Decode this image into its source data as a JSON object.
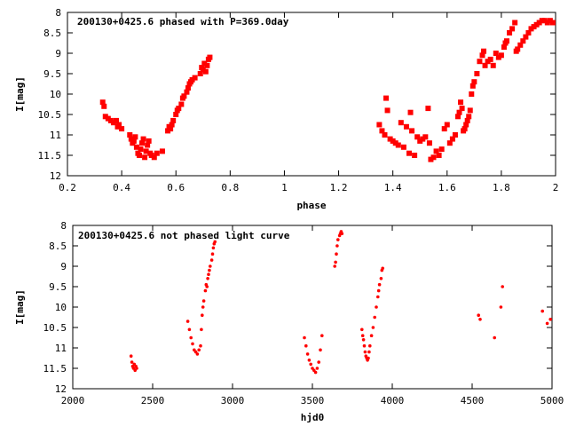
{
  "chart_data": [
    {
      "type": "scatter",
      "title": "200130+0425.6 phased with P=369.0day",
      "xlabel": "phase",
      "ylabel": "I[mag]",
      "xlim": [
        0.2,
        2.0
      ],
      "ylim": [
        12,
        8
      ],
      "y_inverted": true,
      "x_ticks": [
        0.2,
        0.4,
        0.6,
        0.8,
        1.0,
        1.2,
        1.4,
        1.6,
        1.8,
        2.0
      ],
      "x_tick_labels": [
        "0.2",
        "0.4",
        "0.6",
        "0.8",
        "1",
        "1.2",
        "1.4",
        "1.6",
        "1.8",
        "2"
      ],
      "y_ticks": [
        8,
        8.5,
        9,
        9.5,
        10,
        10.5,
        11,
        11.5,
        12
      ],
      "y_tick_labels": [
        "8",
        "8.5",
        "9",
        "9.5",
        "10",
        "10.5",
        "11",
        "11.5",
        "12"
      ],
      "marker_color": "#ff0000",
      "grid": false,
      "points": [
        [
          0.33,
          10.2
        ],
        [
          0.335,
          10.3
        ],
        [
          0.34,
          10.55
        ],
        [
          0.35,
          10.6
        ],
        [
          0.36,
          10.65
        ],
        [
          0.37,
          10.7
        ],
        [
          0.38,
          10.65
        ],
        [
          0.385,
          10.8
        ],
        [
          0.39,
          10.75
        ],
        [
          0.4,
          10.85
        ],
        [
          0.43,
          11.0
        ],
        [
          0.435,
          11.1
        ],
        [
          0.44,
          11.2
        ],
        [
          0.445,
          11.15
        ],
        [
          0.45,
          11.05
        ],
        [
          0.455,
          11.3
        ],
        [
          0.46,
          11.45
        ],
        [
          0.465,
          11.5
        ],
        [
          0.47,
          11.35
        ],
        [
          0.475,
          11.2
        ],
        [
          0.48,
          11.1
        ],
        [
          0.485,
          11.55
        ],
        [
          0.49,
          11.4
        ],
        [
          0.495,
          11.25
        ],
        [
          0.5,
          11.15
        ],
        [
          0.505,
          11.45
        ],
        [
          0.51,
          11.5
        ],
        [
          0.52,
          11.55
        ],
        [
          0.53,
          11.45
        ],
        [
          0.55,
          11.4
        ],
        [
          0.57,
          10.9
        ],
        [
          0.575,
          10.8
        ],
        [
          0.58,
          10.85
        ],
        [
          0.585,
          10.75
        ],
        [
          0.59,
          10.65
        ],
        [
          0.6,
          10.5
        ],
        [
          0.605,
          10.4
        ],
        [
          0.61,
          10.35
        ],
        [
          0.62,
          10.25
        ],
        [
          0.625,
          10.1
        ],
        [
          0.63,
          10.05
        ],
        [
          0.64,
          9.95
        ],
        [
          0.645,
          9.85
        ],
        [
          0.65,
          9.75
        ],
        [
          0.655,
          9.7
        ],
        [
          0.66,
          9.65
        ],
        [
          0.67,
          9.6
        ],
        [
          0.69,
          9.5
        ],
        [
          0.695,
          9.35
        ],
        [
          0.7,
          9.4
        ],
        [
          0.705,
          9.25
        ],
        [
          0.71,
          9.45
        ],
        [
          0.715,
          9.3
        ],
        [
          0.72,
          9.15
        ],
        [
          0.725,
          9.1
        ],
        [
          1.35,
          10.75
        ],
        [
          1.36,
          10.9
        ],
        [
          1.37,
          11.0
        ],
        [
          1.375,
          10.1
        ],
        [
          1.38,
          10.4
        ],
        [
          1.39,
          11.1
        ],
        [
          1.4,
          11.15
        ],
        [
          1.41,
          11.2
        ],
        [
          1.42,
          11.25
        ],
        [
          1.43,
          10.7
        ],
        [
          1.44,
          11.3
        ],
        [
          1.45,
          10.8
        ],
        [
          1.46,
          11.45
        ],
        [
          1.465,
          10.45
        ],
        [
          1.47,
          10.9
        ],
        [
          1.48,
          11.5
        ],
        [
          1.49,
          11.05
        ],
        [
          1.5,
          11.15
        ],
        [
          1.51,
          11.1
        ],
        [
          1.52,
          11.05
        ],
        [
          1.53,
          10.35
        ],
        [
          1.535,
          11.2
        ],
        [
          1.54,
          11.6
        ],
        [
          1.55,
          11.55
        ],
        [
          1.56,
          11.4
        ],
        [
          1.57,
          11.5
        ],
        [
          1.58,
          11.35
        ],
        [
          1.59,
          10.85
        ],
        [
          1.6,
          10.75
        ],
        [
          1.61,
          11.2
        ],
        [
          1.62,
          11.1
        ],
        [
          1.63,
          11.0
        ],
        [
          1.64,
          10.55
        ],
        [
          1.645,
          10.45
        ],
        [
          1.65,
          10.2
        ],
        [
          1.655,
          10.35
        ],
        [
          1.66,
          10.9
        ],
        [
          1.665,
          10.85
        ],
        [
          1.67,
          10.75
        ],
        [
          1.675,
          10.65
        ],
        [
          1.68,
          10.55
        ],
        [
          1.685,
          10.4
        ],
        [
          1.69,
          10.0
        ],
        [
          1.695,
          9.8
        ],
        [
          1.7,
          9.7
        ],
        [
          1.71,
          9.5
        ],
        [
          1.72,
          9.2
        ],
        [
          1.73,
          9.05
        ],
        [
          1.735,
          8.95
        ],
        [
          1.74,
          9.3
        ],
        [
          1.75,
          9.2
        ],
        [
          1.76,
          9.15
        ],
        [
          1.77,
          9.3
        ],
        [
          1.78,
          9.0
        ],
        [
          1.79,
          9.1
        ],
        [
          1.8,
          9.05
        ],
        [
          1.81,
          8.85
        ],
        [
          1.815,
          8.75
        ],
        [
          1.82,
          8.7
        ],
        [
          1.83,
          8.5
        ],
        [
          1.84,
          8.4
        ],
        [
          1.85,
          8.25
        ],
        [
          1.855,
          8.95
        ],
        [
          1.86,
          8.9
        ],
        [
          1.87,
          8.8
        ],
        [
          1.88,
          8.7
        ],
        [
          1.89,
          8.6
        ],
        [
          1.9,
          8.5
        ],
        [
          1.91,
          8.4
        ],
        [
          1.92,
          8.35
        ],
        [
          1.93,
          8.3
        ],
        [
          1.94,
          8.25
        ],
        [
          1.95,
          8.2
        ],
        [
          1.96,
          8.2
        ],
        [
          1.97,
          8.25
        ],
        [
          1.98,
          8.2
        ],
        [
          1.99,
          8.25
        ]
      ]
    },
    {
      "type": "scatter",
      "title": "200130+0425.6 not phased light curve",
      "xlabel": "hjd0",
      "ylabel": "I[mag]",
      "xlim": [
        2000,
        5000
      ],
      "ylim": [
        12,
        8
      ],
      "y_inverted": true,
      "x_ticks": [
        2000,
        2500,
        3000,
        3500,
        4000,
        4500,
        5000
      ],
      "x_tick_labels": [
        "2000",
        "2500",
        "3000",
        "3500",
        "4000",
        "4500",
        "5000"
      ],
      "y_ticks": [
        8,
        8.5,
        9,
        9.5,
        10,
        10.5,
        11,
        11.5,
        12
      ],
      "y_tick_labels": [
        "8",
        "8.5",
        "9",
        "9.5",
        "10",
        "10.5",
        "11",
        "11.5",
        "12"
      ],
      "marker_color": "#ff0000",
      "grid": false,
      "points": [
        [
          2365,
          11.2
        ],
        [
          2370,
          11.35
        ],
        [
          2375,
          11.45
        ],
        [
          2380,
          11.5
        ],
        [
          2385,
          11.4
        ],
        [
          2390,
          11.55
        ],
        [
          2395,
          11.45
        ],
        [
          2400,
          11.5
        ],
        [
          2720,
          10.35
        ],
        [
          2730,
          10.55
        ],
        [
          2740,
          10.75
        ],
        [
          2750,
          10.9
        ],
        [
          2760,
          11.05
        ],
        [
          2770,
          11.1
        ],
        [
          2780,
          11.15
        ],
        [
          2790,
          11.05
        ],
        [
          2800,
          10.95
        ],
        [
          2805,
          10.55
        ],
        [
          2810,
          10.2
        ],
        [
          2815,
          10.0
        ],
        [
          2820,
          9.85
        ],
        [
          2830,
          9.6
        ],
        [
          2835,
          9.45
        ],
        [
          2840,
          9.5
        ],
        [
          2845,
          9.3
        ],
        [
          2850,
          9.2
        ],
        [
          2855,
          9.1
        ],
        [
          2860,
          9.0
        ],
        [
          2870,
          8.85
        ],
        [
          2875,
          8.7
        ],
        [
          2880,
          8.55
        ],
        [
          2885,
          8.45
        ],
        [
          2890,
          8.4
        ],
        [
          3450,
          10.75
        ],
        [
          3460,
          10.95
        ],
        [
          3470,
          11.15
        ],
        [
          3480,
          11.3
        ],
        [
          3490,
          11.4
        ],
        [
          3500,
          11.5
        ],
        [
          3510,
          11.55
        ],
        [
          3520,
          11.6
        ],
        [
          3530,
          11.5
        ],
        [
          3540,
          11.35
        ],
        [
          3550,
          11.05
        ],
        [
          3560,
          10.7
        ],
        [
          3640,
          9.0
        ],
        [
          3645,
          8.9
        ],
        [
          3650,
          8.7
        ],
        [
          3655,
          8.5
        ],
        [
          3660,
          8.35
        ],
        [
          3670,
          8.25
        ],
        [
          3675,
          8.2
        ],
        [
          3680,
          8.15
        ],
        [
          3685,
          8.2
        ],
        [
          3810,
          10.55
        ],
        [
          3815,
          10.7
        ],
        [
          3820,
          10.8
        ],
        [
          3825,
          10.95
        ],
        [
          3830,
          11.1
        ],
        [
          3835,
          11.2
        ],
        [
          3840,
          11.25
        ],
        [
          3845,
          11.3
        ],
        [
          3850,
          11.25
        ],
        [
          3855,
          11.1
        ],
        [
          3860,
          10.95
        ],
        [
          3870,
          10.7
        ],
        [
          3880,
          10.5
        ],
        [
          3890,
          10.25
        ],
        [
          3900,
          10.0
        ],
        [
          3910,
          9.75
        ],
        [
          3915,
          9.6
        ],
        [
          3920,
          9.45
        ],
        [
          3930,
          9.3
        ],
        [
          3935,
          9.1
        ],
        [
          3940,
          9.05
        ],
        [
          4540,
          10.2
        ],
        [
          4550,
          10.3
        ],
        [
          4640,
          10.75
        ],
        [
          4680,
          10.0
        ],
        [
          4690,
          9.5
        ],
        [
          4940,
          10.1
        ],
        [
          4970,
          10.4
        ],
        [
          4990,
          10.3
        ]
      ]
    }
  ]
}
